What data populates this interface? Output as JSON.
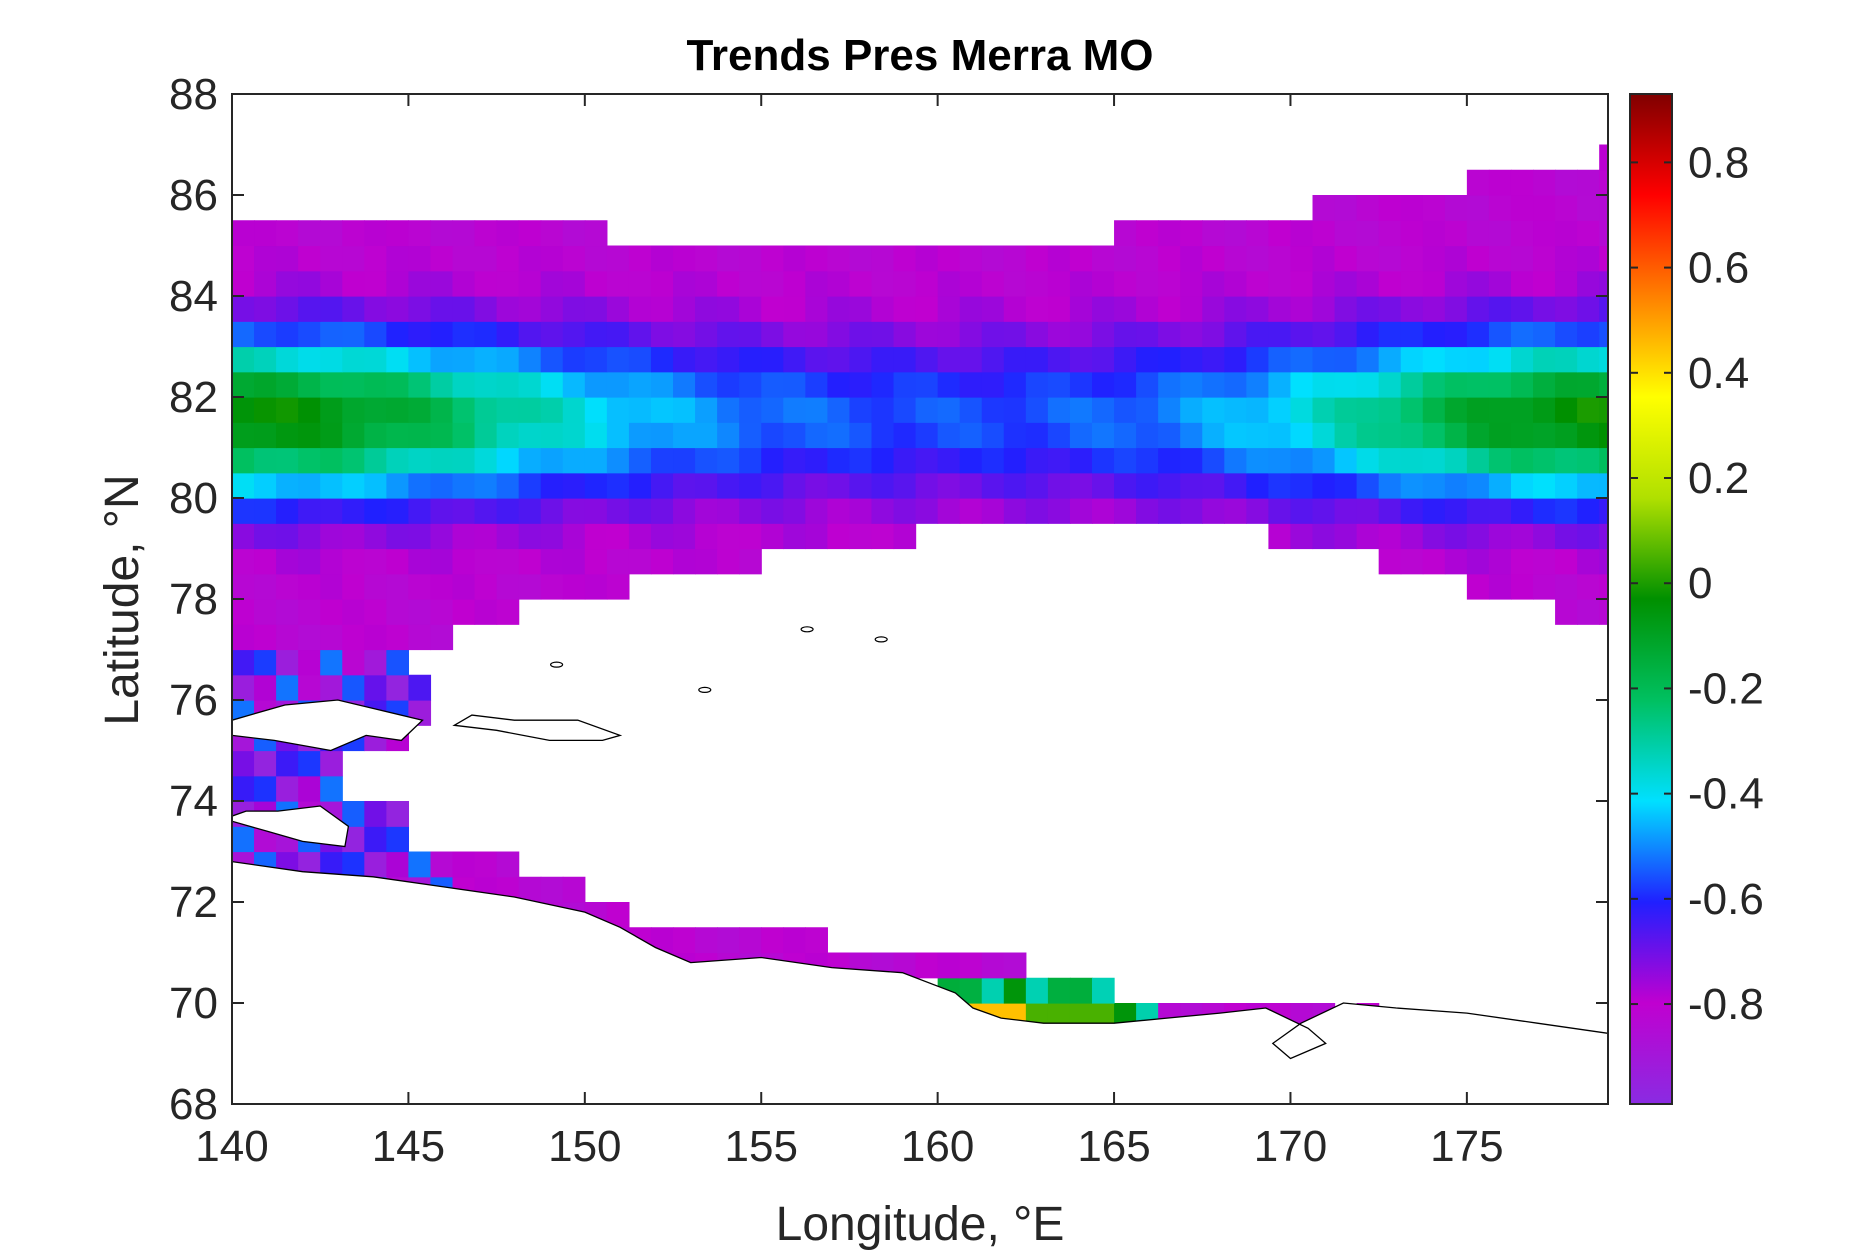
{
  "chart_data": {
    "type": "heatmap",
    "title": "Trends Pres Merra MO",
    "xlabel": "Longitude, °E",
    "ylabel": "Latitude, °N",
    "xlim": [
      140,
      179
    ],
    "ylim": [
      68,
      88
    ],
    "x_ticks": [
      140,
      145,
      150,
      155,
      160,
      165,
      170,
      175
    ],
    "y_ticks": [
      68,
      70,
      72,
      74,
      76,
      78,
      80,
      82,
      84,
      86,
      88
    ],
    "colorbar": {
      "range": [
        -0.99,
        0.93
      ],
      "ticks": [
        -0.8,
        -0.6,
        -0.4,
        -0.2,
        0,
        0.2,
        0.4,
        0.6,
        0.8
      ],
      "colormap": [
        "#8a2be2",
        "#c000d0",
        "#2020ff",
        "#00e0ff",
        "#00c060",
        "#009000",
        "#b0e000",
        "#ffff00",
        "#ff8000",
        "#ff0000",
        "#800000"
      ]
    },
    "grid": false,
    "cell_size_deg": {
      "lon": 0.625,
      "lat": 0.5
    },
    "description_of_field": "Gridded trend values: mostly -0.7 to -0.85 (purple/magenta), a blue-cyan-green band near 80-83°N at both longitude ends, positive (orange/green) cells near 161°E, 69.6°N",
    "coastline": true
  }
}
